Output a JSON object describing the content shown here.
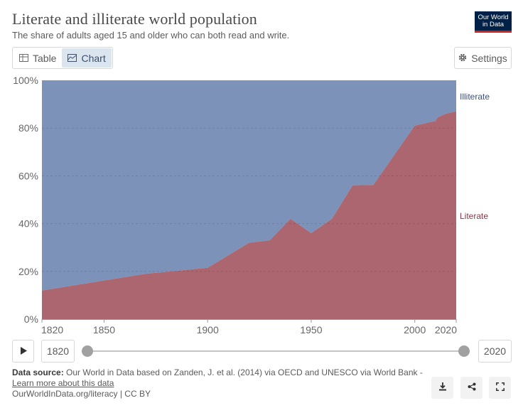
{
  "header": {
    "title": "Literate and illiterate world population",
    "subtitle": "The share of adults aged 15 and older who can both read and write.",
    "logo_line1": "Our World",
    "logo_line2": "in Data"
  },
  "tabs": [
    {
      "label": "Table",
      "icon": "table-icon",
      "active": false
    },
    {
      "label": "Chart",
      "icon": "chart-icon",
      "active": true
    }
  ],
  "settings_label": "Settings",
  "chart_data": {
    "type": "area",
    "stacked": true,
    "percent": true,
    "x_ticks": [
      "1820",
      "1850",
      "1900",
      "1950",
      "2000",
      "2020"
    ],
    "y_ticks": [
      "0%",
      "20%",
      "40%",
      "60%",
      "80%",
      "100%"
    ],
    "xlim": [
      1820,
      2020
    ],
    "ylim": [
      0,
      100
    ],
    "grid": true,
    "legend": "right",
    "series": [
      {
        "name": "Literate",
        "color": "#a2555f",
        "points": [
          [
            1820,
            12
          ],
          [
            1870,
            19
          ],
          [
            1900,
            21.5
          ],
          [
            1920,
            32
          ],
          [
            1930,
            33
          ],
          [
            1940,
            42
          ],
          [
            1950,
            36
          ],
          [
            1960,
            42
          ],
          [
            1970,
            56
          ],
          [
            1980,
            56.2
          ],
          [
            2000,
            81
          ],
          [
            2010,
            83
          ],
          [
            2011,
            84.5
          ],
          [
            2015,
            86
          ],
          [
            2020,
            87
          ]
        ]
      },
      {
        "name": "Illiterate",
        "color": "#6e86b0",
        "points": [
          [
            1820,
            88
          ],
          [
            1870,
            81
          ],
          [
            1900,
            78.5
          ],
          [
            1920,
            68
          ],
          [
            1930,
            67
          ],
          [
            1940,
            58
          ],
          [
            1950,
            64
          ],
          [
            1960,
            58
          ],
          [
            1970,
            44
          ],
          [
            1980,
            43.8
          ],
          [
            2000,
            19
          ],
          [
            2010,
            17
          ],
          [
            2011,
            15.5
          ],
          [
            2015,
            14
          ],
          [
            2020,
            13
          ]
        ]
      }
    ]
  },
  "timeline": {
    "start_label": "1820",
    "end_label": "2020",
    "start_value": 1820,
    "end_value": 2020
  },
  "footer": {
    "source_label": "Data source:",
    "source_text": "Our World in Data based on Zanden, J. et al. (2014) via OECD and UNESCO via World Bank -",
    "learn_more": "Learn more about this data",
    "url_line": "OurWorldInData.org/literacy | CC BY"
  }
}
